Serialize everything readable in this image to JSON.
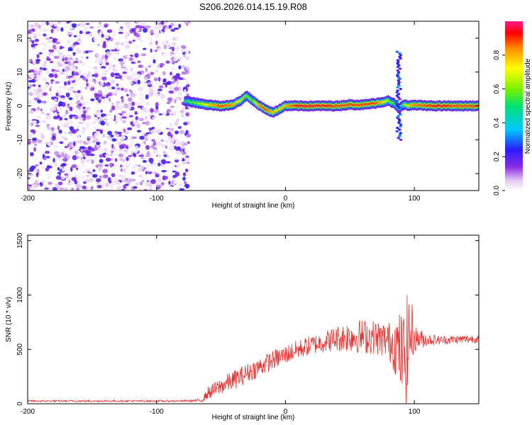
{
  "figure": {
    "title": "S206.2026.014.15.19.R08"
  },
  "colors": {
    "line": "#e8302e",
    "axis": "#000000"
  },
  "chart_data": [
    {
      "type": "heatmap",
      "title": "S206.2026.014.15.19.R08",
      "xlabel": "Height of straight line (km)",
      "ylabel": "Frequency (Hz)",
      "xlim": [
        -200,
        150
      ],
      "ylim": [
        -25,
        25
      ],
      "x_ticks": [
        -200,
        -100,
        0,
        100
      ],
      "y_ticks": [
        -20,
        -10,
        0,
        10,
        20
      ],
      "colorbar": {
        "label": "Normalized spectral amplitude",
        "range": [
          0.0,
          1.0
        ],
        "ticks": [
          0.0,
          0.2,
          0.4,
          0.6,
          0.8
        ],
        "tick_labels": [
          "0.0",
          "0.2",
          "0.4",
          "0.6",
          "0.8"
        ]
      },
      "noise_region": {
        "x": [
          -200,
          -75
        ],
        "f": [
          -25,
          25
        ],
        "amplitude": [
          0.02,
          0.25
        ]
      },
      "ridge": {
        "x": [
          -78,
          -70,
          -60,
          -50,
          -42,
          -35,
          -30,
          -25,
          -20,
          -15,
          -10,
          -5,
          0,
          10,
          20,
          30,
          40,
          50,
          60,
          70,
          80,
          85,
          88,
          90,
          92,
          95,
          100,
          110,
          120,
          130,
          140,
          150
        ],
        "freq": [
          1.5,
          1.0,
          0.3,
          0.0,
          0.2,
          1.5,
          3.0,
          1.5,
          0.0,
          -1.0,
          -2.0,
          -1.0,
          0.0,
          0.0,
          0.0,
          0.0,
          0.0,
          0.4,
          0.3,
          0.8,
          1.5,
          0.5,
          -1.0,
          0.0,
          0.5,
          0.0,
          0.3,
          0.0,
          0.0,
          0.0,
          0.0,
          0.0
        ],
        "amplitude": [
          0.5,
          0.6,
          0.75,
          0.9,
          0.85,
          0.7,
          0.6,
          0.6,
          0.85,
          0.9,
          0.8,
          0.75,
          0.8,
          0.95,
          0.95,
          0.95,
          0.9,
          0.9,
          0.9,
          0.9,
          0.65,
          0.55,
          0.45,
          0.5,
          0.6,
          0.75,
          0.85,
          0.9,
          0.95,
          0.9,
          0.9,
          0.9
        ]
      },
      "spike": {
        "x": 88,
        "f_range": [
          -10,
          16
        ],
        "amplitude": 0.3
      }
    },
    {
      "type": "line",
      "xlabel": "Height of straight line (km)",
      "ylabel": "SNR (10 * v/v)",
      "xlim": [
        -200,
        150
      ],
      "ylim": [
        0,
        1550
      ],
      "x_ticks": [
        -200,
        -100,
        0,
        100
      ],
      "y_ticks": [
        0,
        500,
        1000,
        1500
      ],
      "series": [
        {
          "name": "SNR",
          "x": [
            -200,
            -150,
            -100,
            -80,
            -65,
            -60,
            -50,
            -40,
            -30,
            -20,
            -10,
            0,
            10,
            20,
            30,
            40,
            50,
            60,
            70,
            80,
            85,
            88,
            90,
            92,
            94,
            96,
            98,
            100,
            110,
            120,
            130,
            140,
            150
          ],
          "y": [
            25,
            25,
            25,
            25,
            30,
            100,
            160,
            220,
            280,
            340,
            400,
            450,
            500,
            540,
            570,
            600,
            620,
            620,
            610,
            580,
            550,
            500,
            450,
            420,
            500,
            600,
            650,
            600,
            590,
            585,
            590,
            595,
            600
          ],
          "noise": [
            8,
            8,
            8,
            8,
            15,
            60,
            80,
            90,
            90,
            90,
            90,
            90,
            90,
            90,
            100,
            120,
            150,
            160,
            160,
            170,
            280,
            350,
            400,
            450,
            500,
            420,
            300,
            120,
            60,
            40,
            40,
            40,
            40
          ]
        }
      ]
    }
  ]
}
